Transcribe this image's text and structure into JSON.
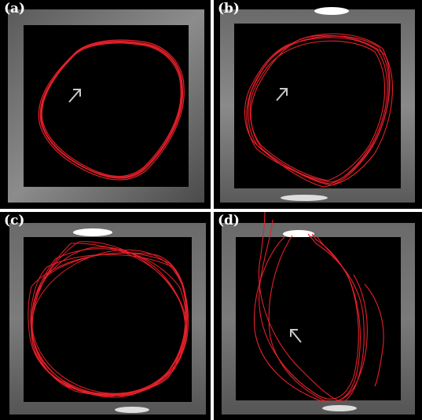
{
  "figure": {
    "panels": [
      {
        "label": "(a)",
        "has_arrow": true,
        "trajectory_color": "#e8202a"
      },
      {
        "label": "(b)",
        "has_arrow": true,
        "trajectory_color": "#e8202a"
      },
      {
        "label": "(c)",
        "has_arrow": false,
        "trajectory_color": "#e8202a"
      },
      {
        "label": "(d)",
        "has_arrow": true,
        "trajectory_color": "#e8202a"
      }
    ],
    "colors": {
      "background": "#000000",
      "frame": "#9a9a9a",
      "trajectory": "#e8202a",
      "arrow": "#c8c8c8",
      "separator": "#ffffff"
    }
  }
}
